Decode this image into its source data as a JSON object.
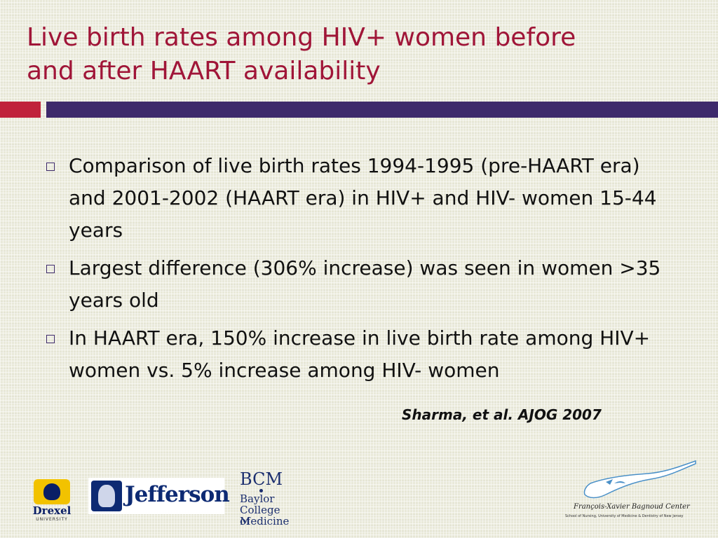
{
  "title": {
    "line1": "Live birth rates among HIV+ women before",
    "line2": "and after HAART availability"
  },
  "bullets": [
    {
      "text": "Comparison of live birth rates 1994-1995 (pre-HAART era) and 2001-2002 (HAART era) in HIV+ and HIV- women 15-44 years"
    },
    {
      "text": "Largest difference (306% increase) was seen in women >35 years old"
    },
    {
      "text": "In HAART era, 150% increase in live birth rate among HIV+ women vs. 5% increase among HIV- women"
    }
  ],
  "citation": "Sharma, et al. AJOG 2007",
  "logos": {
    "drexel": {
      "name": "Drexel",
      "sub": "UNIVERSITY"
    },
    "jefferson": {
      "name": "Jefferson"
    },
    "bcm": {
      "mark": "BCM",
      "line1": "Baylor",
      "line2": "College of",
      "line3": "Medicine"
    },
    "fxb": {
      "name": "François-Xavier Bagnoud Center",
      "sub": "School of Nursing, University of Medicine & Dentistry of New Jersey"
    }
  },
  "colors": {
    "title": "#a01538",
    "accent_red": "#c0223b",
    "accent_purple": "#3e2a6b",
    "text": "#111111"
  }
}
